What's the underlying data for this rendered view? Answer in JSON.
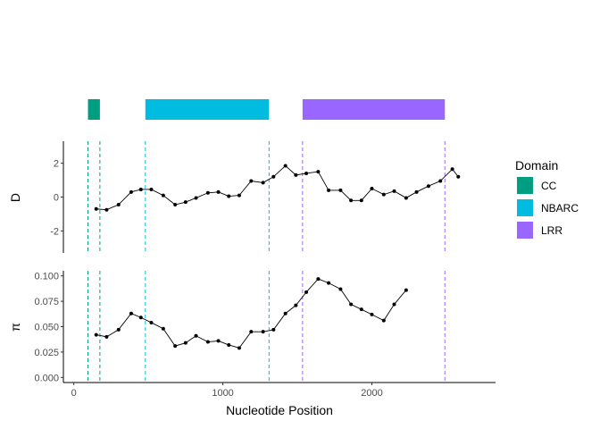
{
  "chart_data": {
    "type": "line",
    "xlabel": "Nucleotide Position",
    "xlim": [
      -70,
      2830
    ],
    "x_ticks": [
      0,
      1000,
      2000
    ],
    "x_tick_labels": [
      "0",
      "1000",
      "2000"
    ],
    "domains": [
      {
        "name": "CC",
        "start": 95,
        "end": 175,
        "color": "#009E80"
      },
      {
        "name": "NBARC",
        "start": 480,
        "end": 1310,
        "color": "#00BCE0"
      },
      {
        "name": "LRR",
        "start": 1535,
        "end": 2490,
        "color": "#9966FF"
      }
    ],
    "legend": {
      "title": "Domain",
      "position": "right",
      "items": [
        "CC",
        "NBARC",
        "LRR"
      ]
    },
    "panels": [
      {
        "ylabel": "D",
        "ylim": [
          -3.3,
          3.3
        ],
        "y_ticks": [
          -2,
          0,
          2
        ],
        "y_tick_labels": [
          "-2",
          "0",
          "2"
        ],
        "series": [
          {
            "x": [
              150,
              220,
              300,
              385,
              450,
              520,
              600,
              680,
              750,
              820,
              900,
              970,
              1040,
              1110,
              1190,
              1270,
              1340,
              1420,
              1490,
              1560,
              1640,
              1710,
              1790,
              1860,
              1930,
              2000,
              2080,
              2150,
              2230,
              2300,
              2380,
              2460,
              2540,
              2580
            ],
            "y": [
              -0.7,
              -0.75,
              -0.45,
              0.3,
              0.45,
              0.45,
              0.1,
              -0.45,
              -0.3,
              -0.05,
              0.25,
              0.3,
              0.05,
              0.1,
              0.95,
              0.85,
              1.2,
              1.85,
              1.3,
              1.4,
              1.5,
              0.4,
              0.4,
              -0.2,
              -0.2,
              0.5,
              0.15,
              0.35,
              -0.05,
              0.3,
              0.65,
              0.95,
              1.65,
              1.2
            ]
          }
        ]
      },
      {
        "ylabel": "π",
        "ylim": [
          -0.005,
          0.105
        ],
        "y_ticks": [
          0.0,
          0.025,
          0.05,
          0.075,
          0.1
        ],
        "y_tick_labels": [
          "0.000",
          "0.025",
          "0.050",
          "0.075",
          "0.100"
        ],
        "series": [
          {
            "x": [
              150,
              220,
              300,
              385,
              450,
              520,
              600,
              680,
              750,
              820,
              900,
              970,
              1040,
              1110,
              1190,
              1270,
              1340,
              1420,
              1490,
              1560,
              1640,
              1710,
              1790,
              1860,
              1930,
              2000,
              2080,
              2150,
              2230
            ],
            "y": [
              0.042,
              0.04,
              0.047,
              0.063,
              0.059,
              0.054,
              0.048,
              0.031,
              0.034,
              0.041,
              0.035,
              0.036,
              0.032,
              0.029,
              0.045,
              0.045,
              0.047,
              0.063,
              0.071,
              0.084,
              0.097,
              0.093,
              0.087,
              0.072,
              0.067,
              0.062,
              0.056,
              0.072,
              0.086
            ]
          }
        ]
      }
    ]
  }
}
